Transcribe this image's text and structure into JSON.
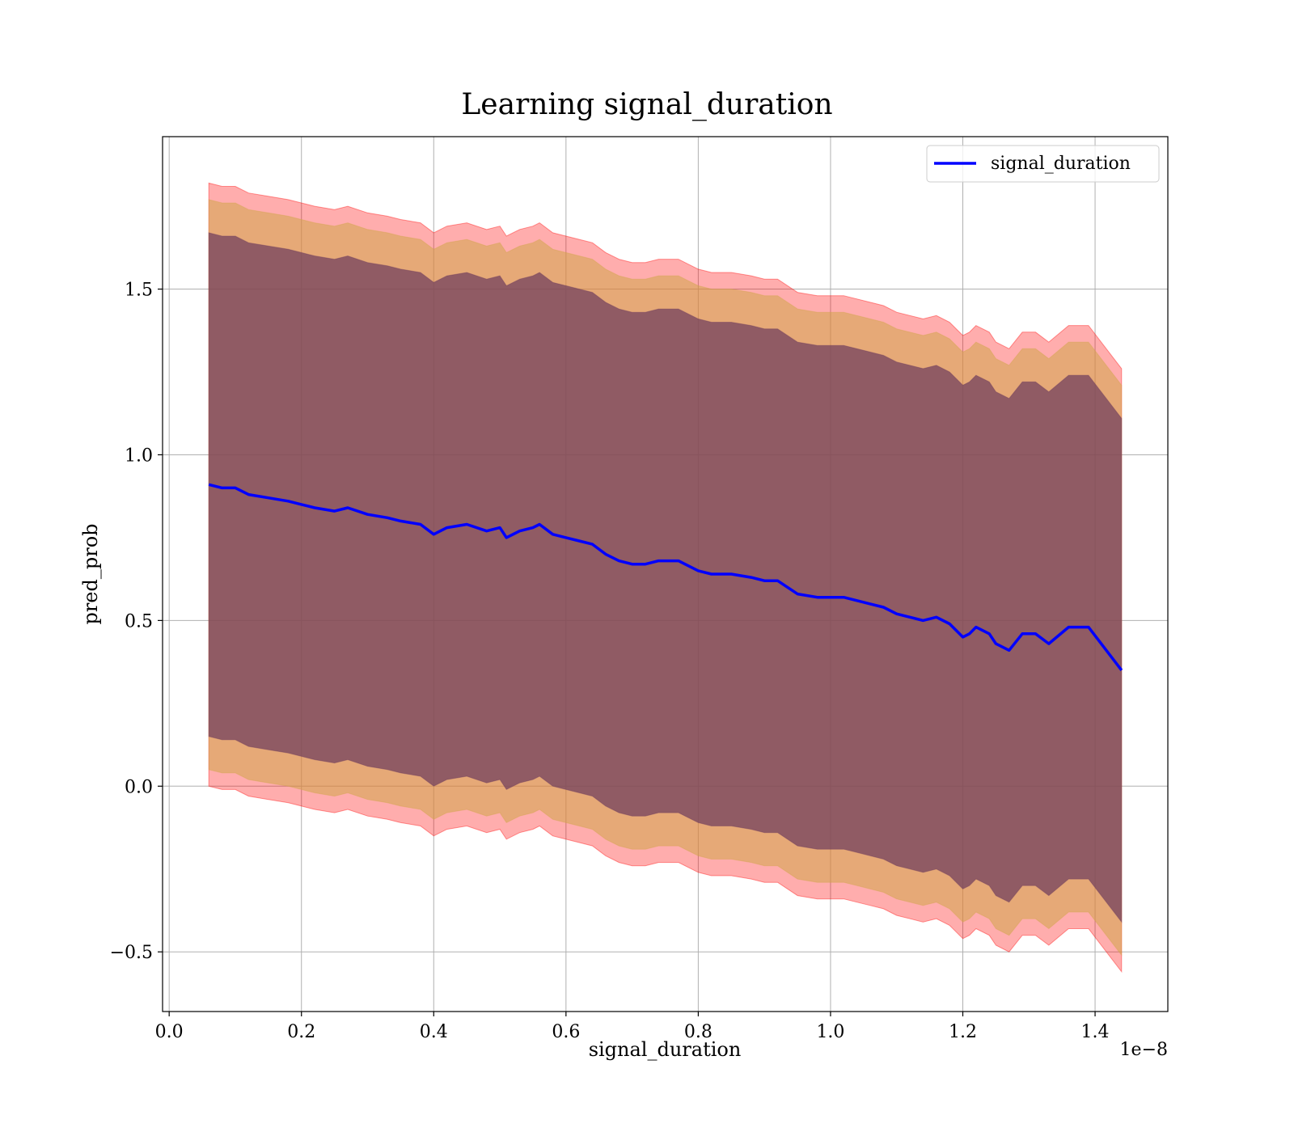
{
  "chart_data": {
    "type": "line",
    "title": "Learning signal_duration",
    "xlabel": "signal_duration",
    "ylabel": "pred_prob",
    "x_offset_label": "1e−8",
    "xlim": [
      -0.01,
      1.51
    ],
    "ylim": [
      -0.68,
      1.96
    ],
    "xticks": [
      0.0,
      0.2,
      0.4,
      0.6,
      0.8,
      1.0,
      1.2,
      1.4
    ],
    "xtick_labels": [
      "0.0",
      "0.2",
      "0.4",
      "0.6",
      "0.8",
      "1.0",
      "1.2",
      "1.4"
    ],
    "yticks": [
      -0.5,
      0.0,
      0.5,
      1.0,
      1.5
    ],
    "ytick_labels": [
      "−0.5",
      "0.0",
      "0.5",
      "1.0",
      "1.5"
    ],
    "grid": true,
    "legend_position": "top-right",
    "colors": {
      "line": "#0000ff",
      "band_outer": "#ff0000",
      "band_middle": "#d2a64b",
      "band_inner": "#6b3a5c"
    },
    "series": [
      {
        "name": "signal_duration",
        "x": [
          0.06,
          0.08,
          0.1,
          0.12,
          0.15,
          0.18,
          0.2,
          0.22,
          0.25,
          0.27,
          0.3,
          0.33,
          0.35,
          0.38,
          0.4,
          0.42,
          0.45,
          0.48,
          0.5,
          0.51,
          0.53,
          0.55,
          0.56,
          0.58,
          0.6,
          0.62,
          0.64,
          0.66,
          0.68,
          0.7,
          0.72,
          0.74,
          0.77,
          0.78,
          0.8,
          0.82,
          0.85,
          0.88,
          0.9,
          0.92,
          0.95,
          0.98,
          1.0,
          1.02,
          1.04,
          1.06,
          1.08,
          1.1,
          1.12,
          1.14,
          1.16,
          1.18,
          1.2,
          1.21,
          1.22,
          1.24,
          1.25,
          1.27,
          1.29,
          1.31,
          1.33,
          1.36,
          1.39,
          1.44
        ],
        "y": [
          0.91,
          0.9,
          0.9,
          0.88,
          0.87,
          0.86,
          0.85,
          0.84,
          0.83,
          0.84,
          0.82,
          0.81,
          0.8,
          0.79,
          0.76,
          0.78,
          0.79,
          0.77,
          0.78,
          0.75,
          0.77,
          0.78,
          0.79,
          0.76,
          0.75,
          0.74,
          0.73,
          0.7,
          0.68,
          0.67,
          0.67,
          0.68,
          0.68,
          0.67,
          0.65,
          0.64,
          0.64,
          0.63,
          0.62,
          0.62,
          0.58,
          0.57,
          0.57,
          0.57,
          0.56,
          0.55,
          0.54,
          0.52,
          0.51,
          0.5,
          0.51,
          0.49,
          0.45,
          0.46,
          0.48,
          0.46,
          0.43,
          0.41,
          0.46,
          0.46,
          0.43,
          0.48,
          0.48,
          0.35
        ],
        "bands": [
          {
            "upper_offset": 0.91,
            "lower_offset": 0.91
          },
          {
            "upper_offset": 0.86,
            "lower_offset": 0.86
          },
          {
            "upper_offset": 0.76,
            "lower_offset": 0.76
          }
        ]
      }
    ]
  }
}
